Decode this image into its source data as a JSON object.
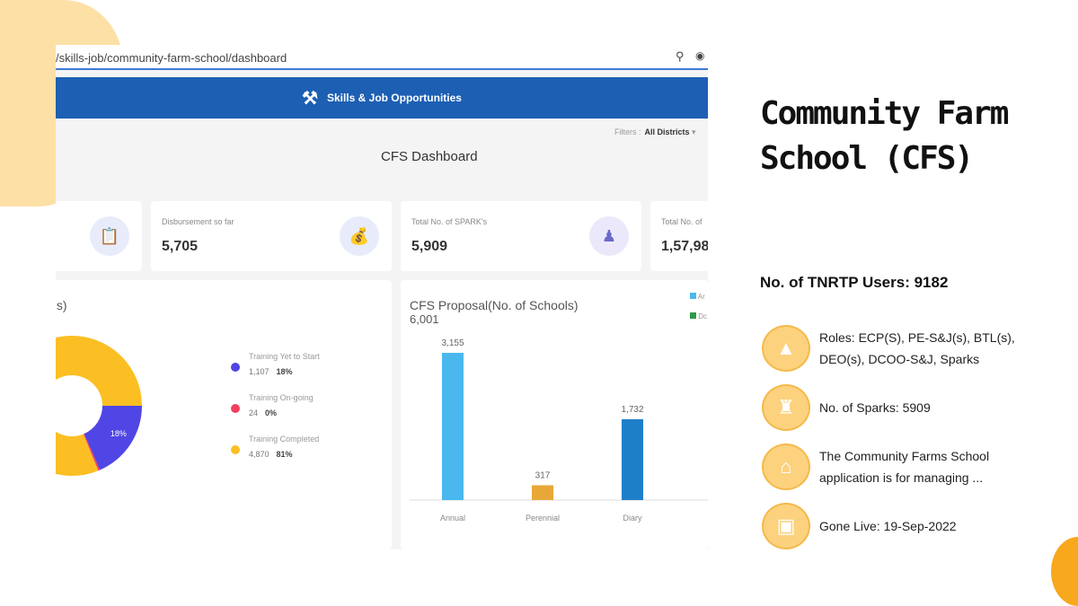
{
  "browser": {
    "url": "/skills-job/community-farm-school/dashboard",
    "icons": [
      "location-pin-icon",
      "extension-icon"
    ]
  },
  "app": {
    "title": "Skills & Job Opportunities",
    "icon": "tools-icon"
  },
  "filters": {
    "label": "Filters :",
    "value": "All Districts"
  },
  "dashboard_title": "CFS Dashboard",
  "cards": [
    {
      "label": "",
      "value": "",
      "icon": "clipboard-icon"
    },
    {
      "label": "Disbursement so far",
      "value": "5,705",
      "icon": "money-icon"
    },
    {
      "label": "Total No. of SPARK's",
      "value": "5,909",
      "icon": "person-icon"
    },
    {
      "label": "Total No. of",
      "value": "1,57,98"
    }
  ],
  "chart_data": [
    {
      "type": "pie",
      "title": "ols)",
      "donut": true,
      "labels": [
        "Training Yet to Start",
        "Training On-going",
        "Training Completed"
      ],
      "counts": [
        "1,107",
        "24",
        "4,870"
      ],
      "values": [
        1107,
        24,
        4870
      ],
      "percents": [
        "18%",
        "0%",
        "81%"
      ],
      "colors": [
        "#4f46e5",
        "#f43f5e",
        "#fbbf24"
      ]
    },
    {
      "type": "bar",
      "title": "CFS Proposal(No. of Schools)",
      "total": "6,001",
      "categories": [
        "Annual",
        "Perennial",
        "Diary"
      ],
      "values": [
        3155,
        317,
        1732
      ],
      "value_labels": [
        "3,155",
        "317",
        "1,732"
      ],
      "colors": [
        "#4ab8ee",
        "#e8a838",
        "#1e7fc9"
      ],
      "legend": [
        {
          "label": "Ar",
          "color": "#4ab8ee"
        },
        {
          "label": "Dc",
          "color": "#2e9a4a"
        }
      ],
      "legend_position": "top-right"
    }
  ],
  "side": {
    "title": "Community Farm School (CFS)",
    "users": "No. of TNRTP Users: 9182",
    "items": [
      {
        "text": "Roles: ECP(S), PE-S&J(s), BTL(s), DEO(s), DCOO-S&J, Sparks",
        "icon": "pyramid-icon"
      },
      {
        "text": "No. of Sparks: 5909",
        "icon": "chess-rook-icon"
      },
      {
        "text": "The Community Farms School application is for managing ...",
        "icon": "farm-icon"
      },
      {
        "text": "Gone Live: 19-Sep-2022",
        "icon": "live-icon"
      }
    ]
  },
  "colors": {
    "appbar": "#1d5fb3",
    "accent": "#f8a81c",
    "blob": "#fde0a6"
  }
}
